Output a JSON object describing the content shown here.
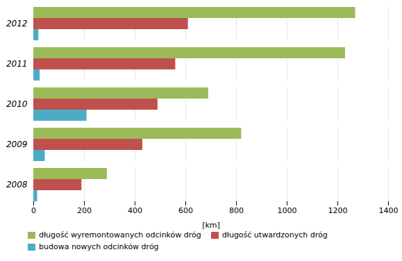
{
  "chart_data": {
    "type": "bar",
    "orientation": "horizontal",
    "categories": [
      "2008",
      "2009",
      "2010",
      "2011",
      "2012"
    ],
    "series": [
      {
        "name": "długość wyremontowanych odcinków dróg",
        "color": "#9BBB59",
        "values": [
          290,
          820,
          690,
          1230,
          1270
        ]
      },
      {
        "name": "długość utwardzonych dróg",
        "color": "#C0504D",
        "values": [
          190,
          430,
          490,
          560,
          610
        ]
      },
      {
        "name": "budowa nowych odcinków dróg",
        "color": "#4BACC6",
        "values": [
          15,
          45,
          210,
          25,
          20
        ]
      }
    ],
    "xlabel": "[km]",
    "xlim": [
      0,
      1400
    ],
    "xticks": [
      0,
      200,
      400,
      600,
      800,
      1000,
      1200,
      1400
    ],
    "grid": true,
    "legend": "lower left"
  }
}
